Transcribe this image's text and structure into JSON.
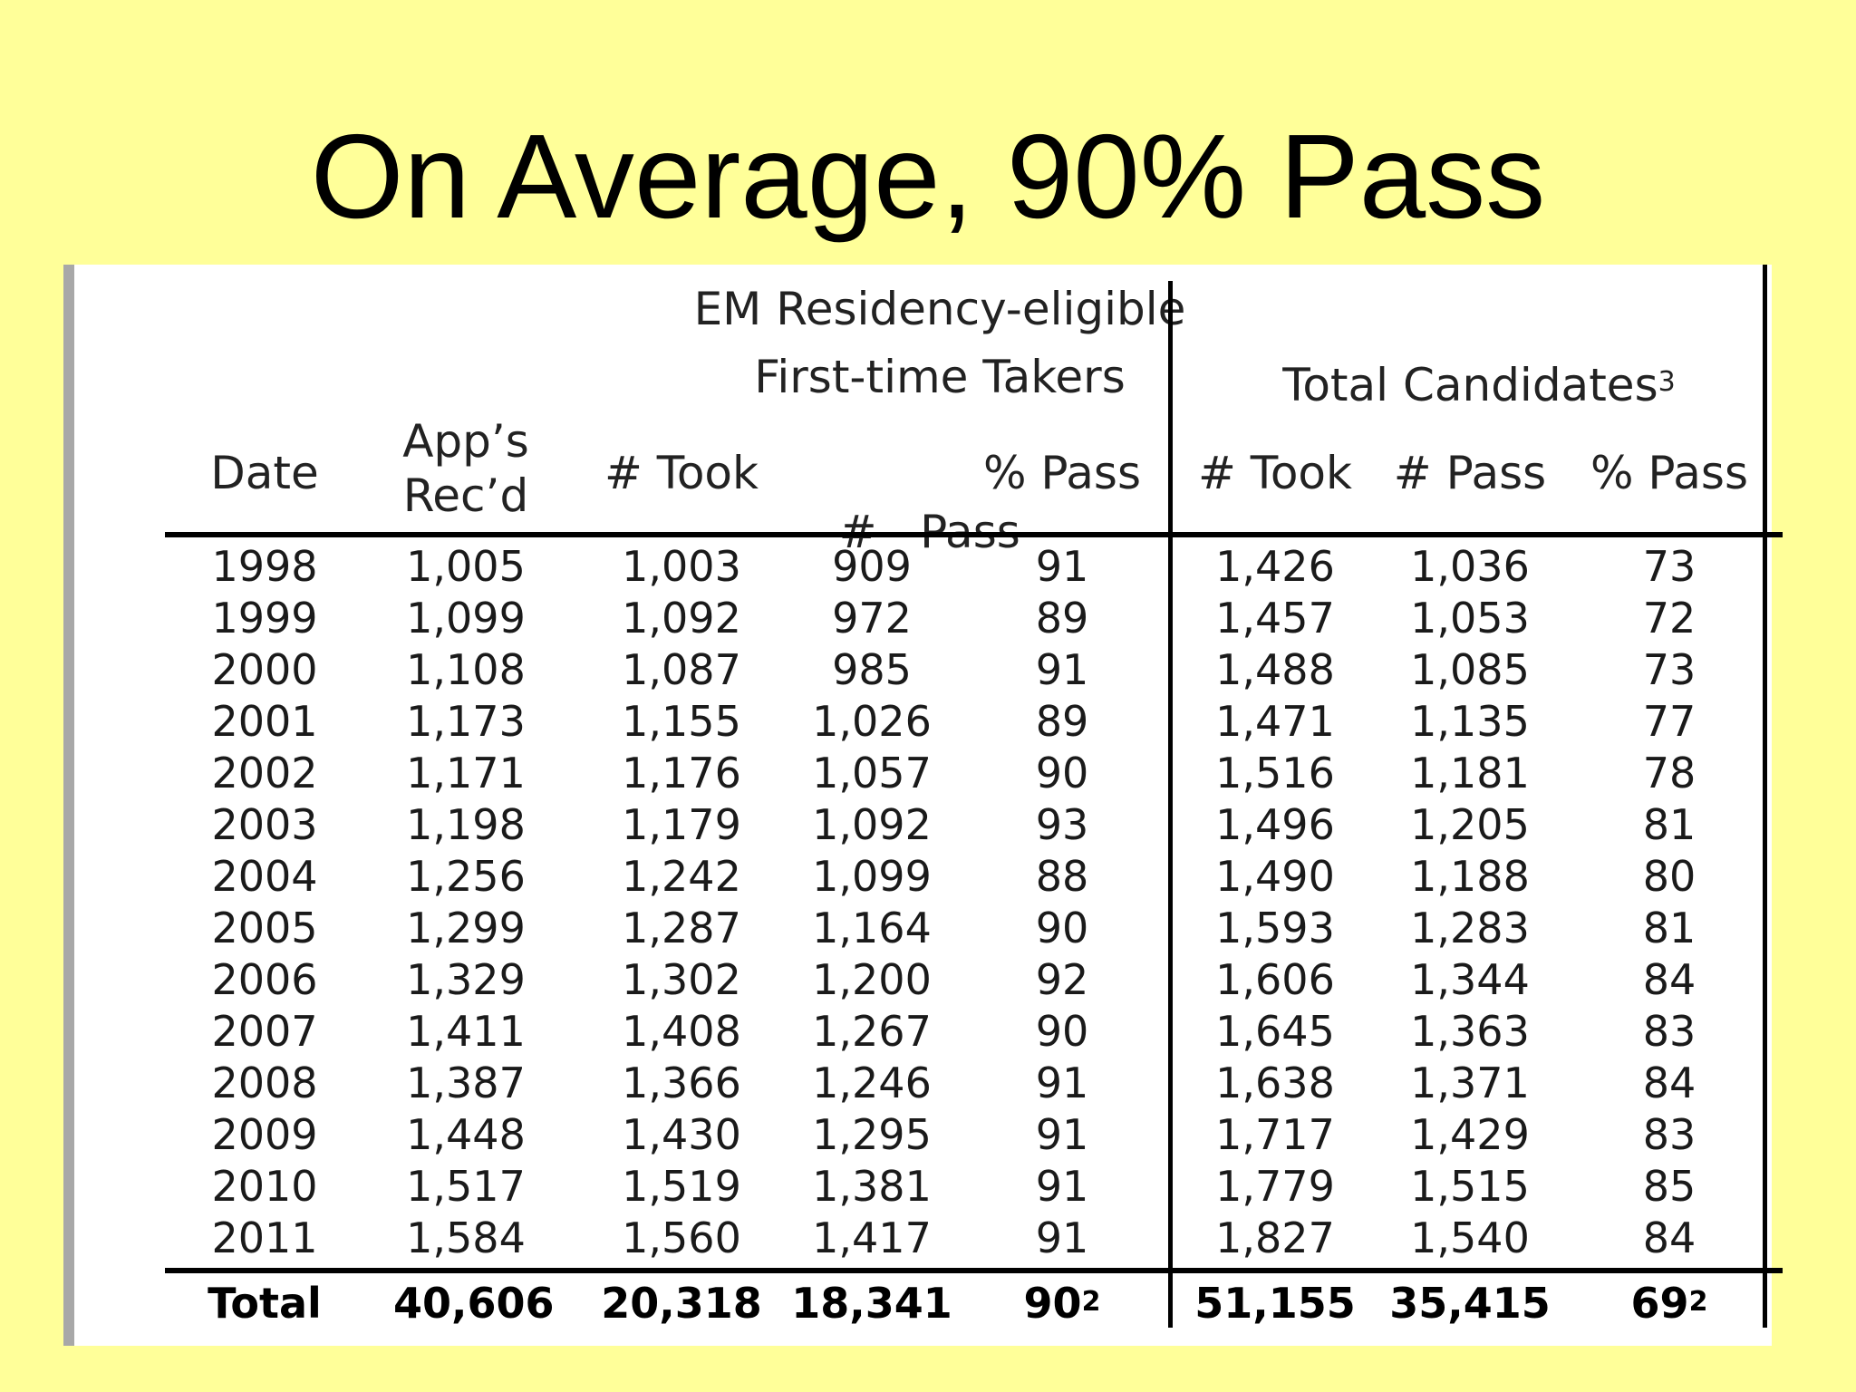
{
  "title": "On Average, 90% Pass",
  "table": {
    "group_left_line1": "EM Residency-eligible",
    "group_left_line2": "First-time Takers",
    "group_right": "Total Candidates",
    "group_right_sup": "3",
    "columns": [
      {
        "line1": "Date",
        "line2": ""
      },
      {
        "line1": "App’s",
        "line2": "Rec’d"
      },
      {
        "line1": "# Took",
        "line2": ""
      },
      {
        "line1": "#   Pass",
        "line2": ""
      },
      {
        "line1": "% Pass",
        "line2": ""
      },
      {
        "line1": "# Took",
        "line2": ""
      },
      {
        "line1": "# Pass",
        "line2": ""
      },
      {
        "line1": "% Pass",
        "line2": ""
      }
    ],
    "rows": [
      [
        "1998",
        "1,005",
        "1,003",
        "909",
        "91",
        "1,426",
        "1,036",
        "73"
      ],
      [
        "1999",
        "1,099",
        "1,092",
        "972",
        "89",
        "1,457",
        "1,053",
        "72"
      ],
      [
        "2000",
        "1,108",
        "1,087",
        "985",
        "91",
        "1,488",
        "1,085",
        "73"
      ],
      [
        "2001",
        "1,173",
        "1,155",
        "1,026",
        "89",
        "1,471",
        "1,135",
        "77"
      ],
      [
        "2002",
        "1,171",
        "1,176",
        "1,057",
        "90",
        "1,516",
        "1,181",
        "78"
      ],
      [
        "2003",
        "1,198",
        "1,179",
        "1,092",
        "93",
        "1,496",
        "1,205",
        "81"
      ],
      [
        "2004",
        "1,256",
        "1,242",
        "1,099",
        "88",
        "1,490",
        "1,188",
        "80"
      ],
      [
        "2005",
        "1,299",
        "1,287",
        "1,164",
        "90",
        "1,593",
        "1,283",
        "81"
      ],
      [
        "2006",
        "1,329",
        "1,302",
        "1,200",
        "92",
        "1,606",
        "1,344",
        "84"
      ],
      [
        "2007",
        "1,411",
        "1,408",
        "1,267",
        "90",
        "1,645",
        "1,363",
        "83"
      ],
      [
        "2008",
        "1,387",
        "1,366",
        "1,246",
        "91",
        "1,638",
        "1,371",
        "84"
      ],
      [
        "2009",
        "1,448",
        "1,430",
        "1,295",
        "91",
        "1,717",
        "1,429",
        "83"
      ],
      [
        "2010",
        "1,517",
        "1,519",
        "1,381",
        "91",
        "1,779",
        "1,515",
        "85"
      ],
      [
        "2011",
        "1,584",
        "1,560",
        "1,417",
        "91",
        "1,827",
        "1,540",
        "84"
      ]
    ],
    "total": {
      "label": "Total",
      "apps": "40,606",
      "took": "20,318",
      "pass": "18,341",
      "pct": "90",
      "pct_sup": "2",
      "total_took": "51,155",
      "total_pass": "35,415",
      "total_pct": "69",
      "total_pct_sup": "2"
    }
  },
  "colors": {
    "background": "#ffff99",
    "panel": "#ffffff",
    "rule": "#000000"
  }
}
